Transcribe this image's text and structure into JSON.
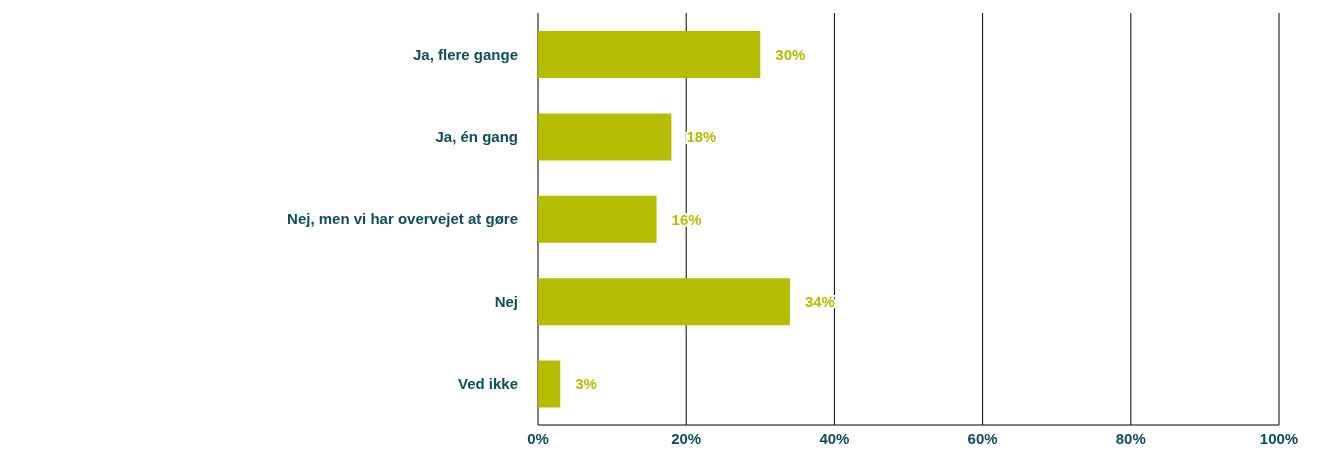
{
  "chart_data": {
    "type": "bar",
    "orientation": "horizontal",
    "categories": [
      "Ja, flere gange",
      "Ja, én gang",
      "Nej, men vi har overvejet at gøre",
      "Nej",
      "Ved ikke"
    ],
    "values": [
      30,
      18,
      16,
      34,
      3
    ],
    "value_labels": [
      "30%",
      "18%",
      "16%",
      "34%",
      "3%"
    ],
    "color": "#b5bd00",
    "xlim": [
      0,
      100
    ],
    "xticks": [
      {
        "value": 0,
        "label": "0%"
      },
      {
        "value": 20,
        "label": "20%"
      },
      {
        "value": 40,
        "label": "40%"
      },
      {
        "value": 60,
        "label": "60%"
      },
      {
        "value": 80,
        "label": "80%"
      },
      {
        "value": 100,
        "label": "100%"
      }
    ],
    "grid": "x",
    "legend": false
  }
}
